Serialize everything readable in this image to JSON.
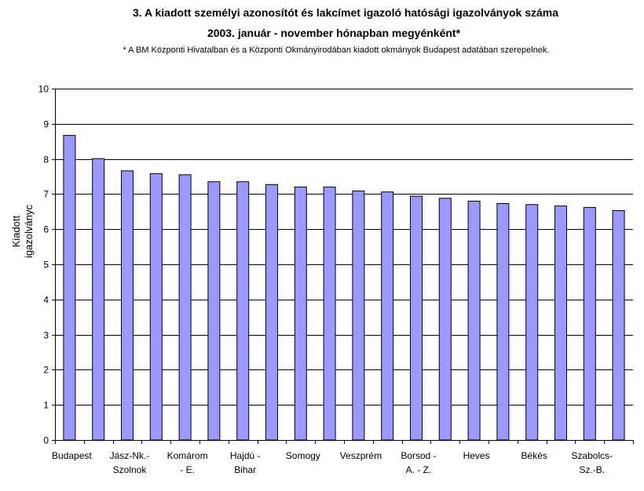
{
  "chart_data": {
    "type": "bar",
    "title": "3. A kiadott személyi azonosítót és lakcímet igazoló hatósági igazolványok száma",
    "subtitle": "2003.  január - november hónapban megyénként*",
    "footnote": "* A BM Központi Hivatalban és a Központi Okmányirodában kiadott okmányok Budapest adatában szerepelnek.",
    "ylabel_lines": [
      "Kiadott",
      "igazolványc"
    ],
    "ylim": [
      0,
      10
    ],
    "yticks": [
      "0",
      "1",
      "2",
      "3",
      "4",
      "5",
      "6",
      "7",
      "8",
      "9",
      "10"
    ],
    "grid": true,
    "bar_color": "#9999ff",
    "values": [
      8.67,
      8.01,
      7.66,
      7.58,
      7.55,
      7.35,
      7.35,
      7.27,
      7.2,
      7.2,
      7.09,
      7.06,
      6.94,
      6.88,
      6.8,
      6.73,
      6.7,
      6.66,
      6.62,
      6.53
    ],
    "category_labels": [
      {
        "index": 0,
        "lines": [
          "Budapest"
        ]
      },
      {
        "index": 2,
        "lines": [
          "Jász-Nk.-",
          "Szolnok"
        ]
      },
      {
        "index": 4,
        "lines": [
          "Komárom",
          "- E."
        ]
      },
      {
        "index": 6,
        "lines": [
          "Hajdú -",
          "Bihar"
        ]
      },
      {
        "index": 8,
        "lines": [
          "Somogy"
        ]
      },
      {
        "index": 10,
        "lines": [
          "Veszprém"
        ]
      },
      {
        "index": 12,
        "lines": [
          "Borsod -",
          "A. - Z."
        ]
      },
      {
        "index": 14,
        "lines": [
          "Heves"
        ]
      },
      {
        "index": 16,
        "lines": [
          "Békés"
        ]
      },
      {
        "index": 18,
        "lines": [
          "Szabolcs-",
          "Sz.-B."
        ]
      }
    ]
  }
}
